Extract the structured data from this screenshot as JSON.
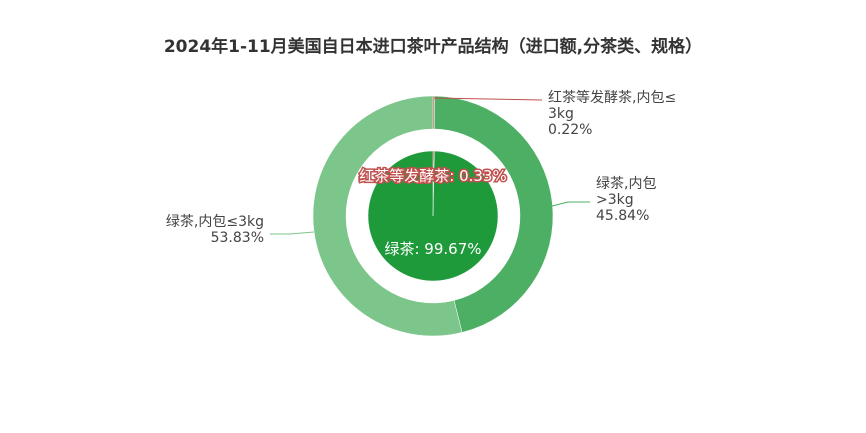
{
  "chart_data": {
    "type": "pie",
    "title": "2024年1-11月美国自日本进口茶叶产品结构（进口额,分茶类、规格）",
    "inner": {
      "slices": [
        {
          "name": "红茶等发酵茶",
          "value": 0.33,
          "label": "红茶等发酵茶: 0.33%",
          "color": "#c0504d"
        },
        {
          "name": "绿茶",
          "value": 99.67,
          "label": "绿茶: 99.67%",
          "color": "#1f9a3b"
        }
      ]
    },
    "outer": {
      "slices": [
        {
          "name": "红茶等发酵茶,内包≤3kg",
          "value": 0.22,
          "lines": [
            "红茶等发酵茶,内包≤",
            "3kg",
            "0.22%"
          ],
          "color": "#c0504d"
        },
        {
          "name": "绿茶,内包>3kg",
          "value": 45.84,
          "lines": [
            "绿茶,内包",
            ">3kg",
            "45.84%"
          ],
          "color": "#4caf64"
        },
        {
          "name": "绿茶,内包≤3kg",
          "value": 53.83,
          "lines": [
            "绿茶,内包≤3kg",
            "53.83%"
          ],
          "color": "#7dc68b"
        }
      ]
    }
  }
}
